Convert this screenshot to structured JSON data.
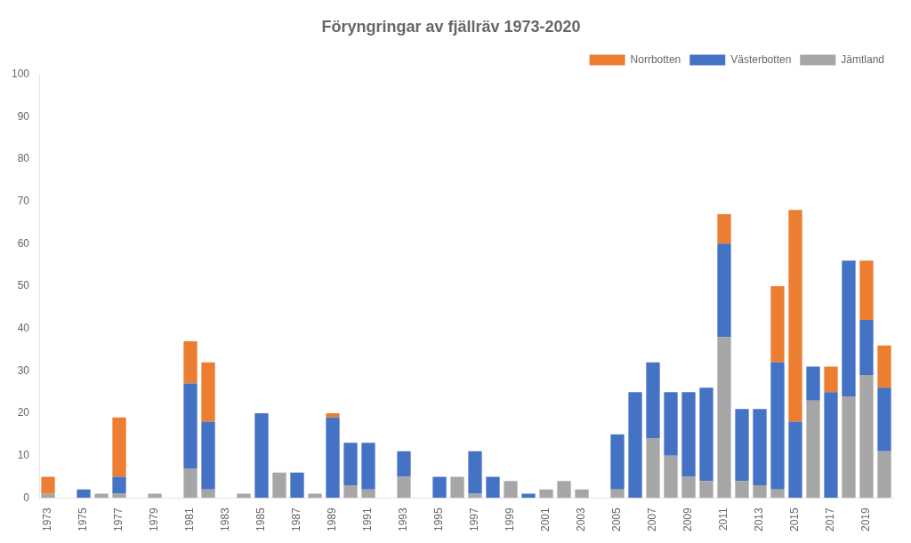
{
  "chart_data": {
    "type": "bar",
    "title": "Föryngringar av fjällräv 1973-2020",
    "categories": [
      "1973",
      null,
      "1975",
      null,
      "1977",
      null,
      "1979",
      null,
      "1981",
      null,
      "1983",
      null,
      "1985",
      null,
      "1987",
      null,
      "1989",
      null,
      "1991",
      null,
      "1993",
      null,
      "1995",
      null,
      "1997",
      null,
      "1999",
      null,
      "2001",
      null,
      "2003",
      null,
      "2005",
      null,
      "2007",
      null,
      "2009",
      null,
      "2011",
      null,
      "2013",
      null,
      "2015",
      null,
      "2017",
      null,
      "2019",
      null
    ],
    "series": [
      {
        "name": "Jämtland",
        "color": "#A6A6A6",
        "values": [
          1,
          0,
          0,
          1,
          1,
          0,
          1,
          0,
          7,
          2,
          0,
          1,
          0,
          6,
          0,
          1,
          0,
          3,
          2,
          0,
          5,
          0,
          0,
          5,
          1,
          0,
          4,
          0,
          2,
          4,
          2,
          0,
          2,
          0,
          14,
          10,
          5,
          4,
          38,
          4,
          3,
          2,
          0,
          23,
          0,
          24,
          29,
          11
        ]
      },
      {
        "name": "Västerbotten",
        "color": "#4472C4",
        "values": [
          0,
          0,
          2,
          0,
          4,
          0,
          0,
          0,
          20,
          16,
          0,
          0,
          20,
          0,
          6,
          0,
          19,
          10,
          11,
          0,
          6,
          0,
          5,
          0,
          10,
          5,
          0,
          1,
          0,
          0,
          0,
          0,
          13,
          25,
          18,
          15,
          20,
          22,
          22,
          17,
          18,
          30,
          18,
          8,
          25,
          32,
          13,
          15
        ]
      },
      {
        "name": "Norrbotten",
        "color": "#ED7D31",
        "values": [
          4,
          0,
          0,
          0,
          14,
          0,
          0,
          0,
          10,
          14,
          0,
          0,
          0,
          0,
          0,
          0,
          1,
          0,
          0,
          0,
          0,
          0,
          0,
          0,
          0,
          0,
          0,
          0,
          0,
          0,
          0,
          0,
          0,
          0,
          0,
          0,
          0,
          0,
          7,
          0,
          0,
          18,
          50,
          0,
          6,
          0,
          14,
          10
        ]
      }
    ],
    "ylim": [
      0,
      100
    ],
    "yticks": [
      0,
      10,
      20,
      30,
      40,
      50,
      60,
      70,
      80,
      90,
      100
    ],
    "grid": false,
    "stacked": true,
    "legend": "upper right"
  }
}
